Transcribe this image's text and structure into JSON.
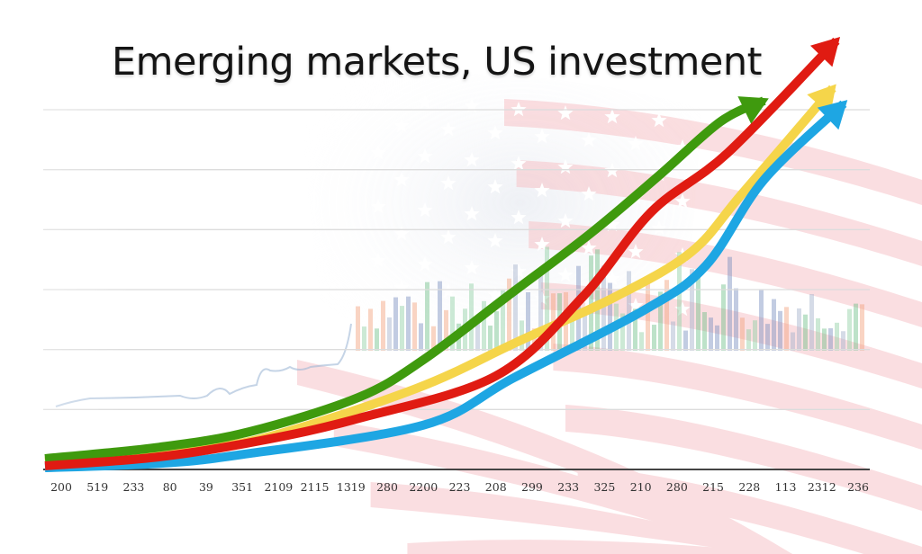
{
  "chart_data": {
    "type": "line",
    "title": "Emerging markets, US investment",
    "xlabel": "",
    "ylabel": "",
    "categories": [
      "200",
      "519",
      "233",
      "80",
      "39",
      "351",
      "2109",
      "2115",
      "1319",
      "280",
      "2200",
      "223",
      "208",
      "299",
      "233",
      "325",
      "210",
      "280",
      "215",
      "228",
      "113",
      "2312",
      "236"
    ],
    "ylim": [
      0,
      6
    ],
    "grid": true,
    "legend": "none",
    "background": "faded US flag with city skyline silhouette",
    "series": [
      {
        "name": "green",
        "color": "#3f9a0e",
        "x": [
          0,
          2.7,
          5.2,
          8.2,
          10.0,
          12.3,
          14.6,
          16.5,
          18.2,
          19.4
        ],
        "values": [
          0.18,
          0.37,
          0.63,
          1.2,
          1.83,
          2.88,
          3.93,
          4.9,
          5.8,
          6.15
        ]
      },
      {
        "name": "red",
        "color": "#e01b12",
        "x": [
          0,
          2.7,
          5.5,
          8.2,
          12.0,
          14.4,
          16.3,
          18.4,
          21.4
        ],
        "values": [
          0.06,
          0.21,
          0.48,
          0.85,
          1.56,
          2.88,
          4.3,
          5.28,
          7.15
        ]
      },
      {
        "name": "yellow",
        "color": "#f5d54a",
        "x": [
          0,
          3.4,
          5.7,
          9.8,
          12.6,
          15.3,
          17.4,
          18.8,
          21.3
        ],
        "values": [
          0.13,
          0.33,
          0.54,
          1.35,
          2.13,
          2.88,
          3.63,
          4.6,
          6.36
        ]
      },
      {
        "name": "blue",
        "color": "#1ea6e3",
        "x": [
          0,
          2.7,
          5.0,
          10.0,
          12.5,
          16.1,
          17.8,
          19.4,
          21.6
        ],
        "values": [
          0.03,
          0.1,
          0.25,
          0.74,
          1.53,
          2.66,
          3.4,
          4.83,
          6.1
        ]
      }
    ]
  }
}
